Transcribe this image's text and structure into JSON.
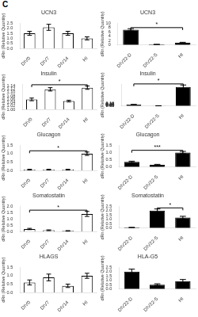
{
  "title": "C",
  "chart_data": [
    {
      "type": "bar",
      "title": "UCN3",
      "categories": [
        "DIV0",
        "DIV7",
        "DIV14",
        "HI"
      ],
      "values": [
        1.5,
        2.1,
        1.5,
        1.0
      ],
      "errors": [
        0.2,
        0.3,
        0.2,
        0.15
      ],
      "y_label": "dRn (Relative Quantity)",
      "ylim": [
        0,
        2.5
      ],
      "yticks": [
        {
          "value": 0,
          "label": "0.0"
        },
        0.5,
        {
          "value": 1,
          "label": "1.0"
        },
        1.5,
        {
          "value": 2,
          "label": "2.0"
        },
        2.5
      ],
      "color": "white",
      "grid": false,
      "annotations": []
    },
    {
      "type": "bar",
      "title": "Insulin",
      "categories": [
        "DIV0",
        "DIV7",
        "DIV14",
        "HI"
      ],
      "values": [
        1.06,
        1.12,
        1.05,
        1.13
      ],
      "errors": [
        0.008,
        0.01,
        0.005,
        0.01
      ],
      "y_label": "dRn (Relative Quantity)",
      "ylim": [
        1.0,
        1.15
      ],
      "yticks": [
        {
          "value": 1,
          "label": "1.00"
        },
        1.02,
        1.04,
        1.06,
        1.08,
        {
          "value": 1.1,
          "label": "1.10"
        },
        1.12,
        1.14
      ],
      "color": "white",
      "grid": false,
      "annotations": [
        {
          "from": "DIV0",
          "to": "HI",
          "text": "*"
        }
      ]
    },
    {
      "type": "bar",
      "title": "Glucagon",
      "categories": [
        "DIV0",
        "DIV7",
        "DIV14",
        "HI"
      ],
      "values": [
        0.05,
        0.05,
        0.05,
        1.0
      ],
      "errors": [
        0.02,
        0.02,
        0.02,
        0.1
      ],
      "y_label": "dRn (Relative Quantity)",
      "ylim": [
        0,
        1.5
      ],
      "yticks": [
        {
          "value": 0,
          "label": "0.0"
        },
        0.5,
        {
          "value": 1,
          "label": "1.0"
        },
        1.5
      ],
      "color": "white",
      "grid": false,
      "annotations": [
        {
          "from": "DIV0",
          "to": "HI",
          "text": "*"
        }
      ]
    },
    {
      "type": "bar",
      "title": "Somatostatin",
      "categories": [
        "DIV0",
        "DIV7",
        "DIV14",
        "HI"
      ],
      "values": [
        0.2,
        0.1,
        0.05,
        1.4
      ],
      "errors": [
        0.05,
        0.03,
        0.02,
        0.2
      ],
      "y_label": "dRn (Relative Quantity)",
      "ylim": [
        0,
        2.0
      ],
      "yticks": [
        {
          "value": 0,
          "label": "0.0"
        },
        0.5,
        {
          "value": 1,
          "label": "1.0"
        },
        1.5,
        {
          "value": 2,
          "label": "2.0"
        }
      ],
      "color": "white",
      "grid": false,
      "annotations": [
        {
          "from": "DIV0",
          "to": "HI",
          "text": "*"
        }
      ]
    },
    {
      "type": "bar",
      "title": "HLAGS",
      "categories": [
        "DIV0",
        "DIV7",
        "DIV14",
        "HI"
      ],
      "values": [
        0.6,
        0.9,
        0.4,
        1.0
      ],
      "errors": [
        0.15,
        0.2,
        0.1,
        0.15
      ],
      "y_label": "dRn (Relative Quantity)",
      "ylim": [
        0,
        1.5
      ],
      "yticks": [
        {
          "value": 0,
          "label": "0.0"
        },
        0.5,
        {
          "value": 1,
          "label": "1.0"
        },
        1.5
      ],
      "color": "white",
      "grid": false,
      "annotations": []
    },
    {
      "type": "bar",
      "title": "UCN3",
      "categories": [
        "DIV22-D",
        "DIV22-S",
        "HI"
      ],
      "values": [
        7.0,
        0.2,
        1.0
      ],
      "errors": [
        0.5,
        0.05,
        0.2
      ],
      "y_label": "dRn (Relative Quantity)",
      "ylim": [
        0,
        10
      ],
      "yticks": [
        0,
        2,
        4,
        6,
        8,
        10
      ],
      "color": "black",
      "grid": false,
      "annotations": [
        {
          "from": "DIV22-D",
          "to": "HI",
          "text": "*"
        }
      ]
    },
    {
      "type": "bar",
      "title": "Insulin",
      "categories": [
        "DIV22-D",
        "DIV22-S",
        "HI"
      ],
      "values": [
        0.1,
        0.01,
        1.4
      ],
      "errors": [
        0.01,
        0.005,
        0.15
      ],
      "y_label": "dRn (Relative Quantity)",
      "ylim": [
        0,
        1.6
      ],
      "yticks": [
        {
          "value": 0,
          "label": "0.00"
        },
        0.02,
        0.04,
        0.06,
        0.08,
        {
          "value": 0.1,
          "label": "0.10"
        },
        0.12,
        0.14,
        0.16
      ],
      "color": "black",
      "grid": false,
      "annotations": [
        {
          "from": "DIV22-D",
          "to": "HI",
          "text": "*"
        }
      ]
    },
    {
      "type": "bar",
      "title": "Glucagon",
      "categories": [
        "DIV22-D",
        "DIV22-S",
        "HI"
      ],
      "values": [
        0.35,
        0.15,
        1.0
      ],
      "errors": [
        0.05,
        0.03,
        0.08
      ],
      "y_label": "dRn (Relative Quantity)",
      "ylim": [
        0,
        1.5
      ],
      "yticks": [
        {
          "value": 0,
          "label": "0.0"
        },
        0.5,
        {
          "value": 1,
          "label": "1.0"
        },
        1.5
      ],
      "color": "black",
      "grid": false,
      "annotations": [
        {
          "from": "DIV22-D",
          "to": "HI",
          "text": "***"
        }
      ]
    },
    {
      "type": "bar",
      "title": "Somatostatin",
      "categories": [
        "DIV22-D",
        "DIV22-S",
        "HI"
      ],
      "values": [
        0.05,
        2.0,
        1.2
      ],
      "errors": [
        0.02,
        0.2,
        0.15
      ],
      "y_label": "dRn (Relative Quantity)",
      "ylim": [
        0,
        2.5
      ],
      "yticks": [
        {
          "value": 0,
          "label": "0.0"
        },
        0.5,
        {
          "value": 1,
          "label": "1.0"
        },
        1.5,
        {
          "value": 2,
          "label": "2.0"
        },
        2.5
      ],
      "color": "black",
      "grid": false,
      "annotations": [
        {
          "from": "DIV22-S",
          "to": "HI",
          "text": "*"
        }
      ]
    },
    {
      "type": "bar",
      "title": "HLA-G5",
      "categories": [
        "DIV22-D",
        "DIV22-S",
        "HI"
      ],
      "values": [
        2.0,
        0.5,
        0.9
      ],
      "errors": [
        0.3,
        0.1,
        0.2
      ],
      "y_label": "dRn (Relative Quantity)",
      "ylim": [
        0,
        2.5
      ],
      "yticks": [
        {
          "value": 0,
          "label": "0.0"
        },
        0.5,
        {
          "value": 1,
          "label": "1.0"
        },
        1.5,
        {
          "value": 2,
          "label": "2.0"
        },
        2.5
      ],
      "color": "black",
      "grid": false,
      "annotations": []
    }
  ]
}
